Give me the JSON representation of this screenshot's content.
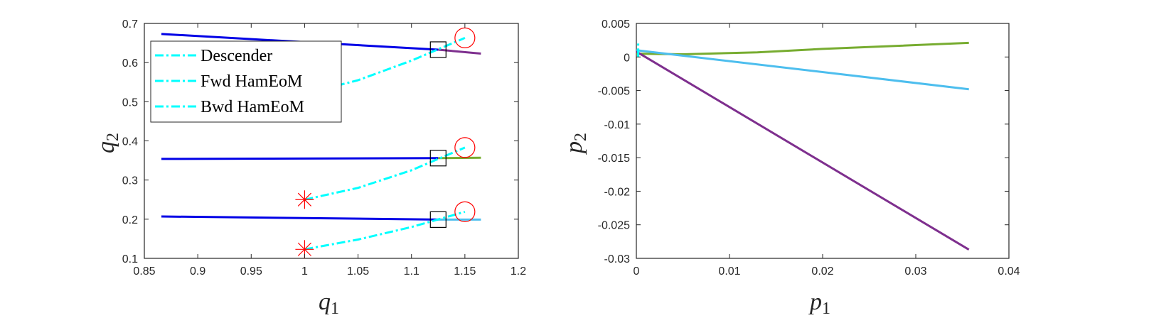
{
  "chart_data": [
    {
      "type": "line",
      "xlabel": "q",
      "xlabel_sub": "1",
      "ylabel": "q",
      "ylabel_sub": "2",
      "xlim": [
        0.85,
        1.2
      ],
      "ylim": [
        0.1,
        0.7
      ],
      "xticks": [
        "0.85",
        "0.9",
        "0.95",
        "1",
        "1.05",
        "1.1",
        "1.15",
        "1.2"
      ],
      "yticks": [
        "0.1",
        "0.2",
        "0.3",
        "0.4",
        "0.5",
        "0.6",
        "0.7"
      ],
      "legend": {
        "placement": "upper-left",
        "entries": [
          "Descender",
          "Fwd HamEoM",
          "Bwd HamEoM"
        ]
      },
      "series": [
        {
          "role": "blue-solid",
          "color": "#0000e6",
          "points": [
            [
              0.866,
              0.673
            ],
            [
              1.125,
              0.633
            ]
          ]
        },
        {
          "role": "purple-solid",
          "color": "#7e2f8e",
          "points": [
            [
              1.125,
              0.633
            ],
            [
              1.165,
              0.623
            ]
          ]
        },
        {
          "role": "blue-solid",
          "color": "#0000e6",
          "points": [
            [
              0.866,
              0.354
            ],
            [
              1.125,
              0.356
            ]
          ]
        },
        {
          "role": "green-solid",
          "color": "#77ac30",
          "points": [
            [
              1.125,
              0.356
            ],
            [
              1.165,
              0.357
            ]
          ]
        },
        {
          "role": "blue-solid",
          "color": "#0000e6",
          "points": [
            [
              0.866,
              0.207
            ],
            [
              1.125,
              0.199
            ]
          ]
        },
        {
          "role": "lightblue-solid",
          "color": "#4dbeee",
          "points": [
            [
              1.125,
              0.199
            ],
            [
              1.165,
              0.199
            ]
          ]
        },
        {
          "role": "cyan-dashdot",
          "color": "#00ffff",
          "points": [
            [
              1.0,
              0.52
            ],
            [
              1.05,
              0.555
            ],
            [
              1.1,
              0.605
            ],
            [
              1.15,
              0.663
            ]
          ]
        },
        {
          "role": "cyan-dashdot",
          "color": "#00ffff",
          "points": [
            [
              1.0,
              0.25
            ],
            [
              1.05,
              0.28
            ],
            [
              1.1,
              0.325
            ],
            [
              1.15,
              0.383
            ]
          ]
        },
        {
          "role": "cyan-dashdot",
          "color": "#00ffff",
          "points": [
            [
              1.0,
              0.123
            ],
            [
              1.05,
              0.148
            ],
            [
              1.1,
              0.18
            ],
            [
              1.15,
              0.219
            ]
          ]
        }
      ],
      "markers": {
        "squares": [
          [
            1.125,
            0.633
          ],
          [
            1.125,
            0.356
          ],
          [
            1.125,
            0.199
          ]
        ],
        "circles": [
          [
            1.15,
            0.663
          ],
          [
            1.15,
            0.383
          ],
          [
            1.15,
            0.219
          ]
        ],
        "stars": [
          [
            1.0,
            0.25
          ],
          [
            1.0,
            0.123
          ]
        ]
      }
    },
    {
      "type": "line",
      "xlabel": "p",
      "xlabel_sub": "1",
      "ylabel": "p",
      "ylabel_sub": "2",
      "xlim": [
        0,
        0.04
      ],
      "ylim": [
        -0.03,
        0.005
      ],
      "xticks": [
        "0",
        "0.01",
        "0.02",
        "0.03",
        "0.04"
      ],
      "yticks": [
        "-0.03",
        "-0.025",
        "-0.02",
        "-0.015",
        "-0.01",
        "-0.005",
        "0",
        "0.005"
      ],
      "series": [
        {
          "role": "green",
          "color": "#77ac30",
          "points": [
            [
              0.0,
              0.0005
            ],
            [
              0.005,
              0.0004
            ],
            [
              0.013,
              0.0007
            ],
            [
              0.02,
              0.0012
            ],
            [
              0.0357,
              0.0021
            ]
          ]
        },
        {
          "role": "lightblue",
          "color": "#4dbeee",
          "points": [
            [
              0.0,
              0.001
            ],
            [
              0.0357,
              -0.0048
            ]
          ]
        },
        {
          "role": "purple",
          "color": "#7e2f8e",
          "points": [
            [
              0.0,
              0.0008
            ],
            [
              0.0357,
              -0.0287
            ]
          ]
        },
        {
          "role": "cyan-dashdot",
          "color": "#00ffff",
          "points": [
            [
              0.0002,
              0.0
            ],
            [
              0.0002,
              0.002
            ]
          ]
        }
      ]
    }
  ]
}
